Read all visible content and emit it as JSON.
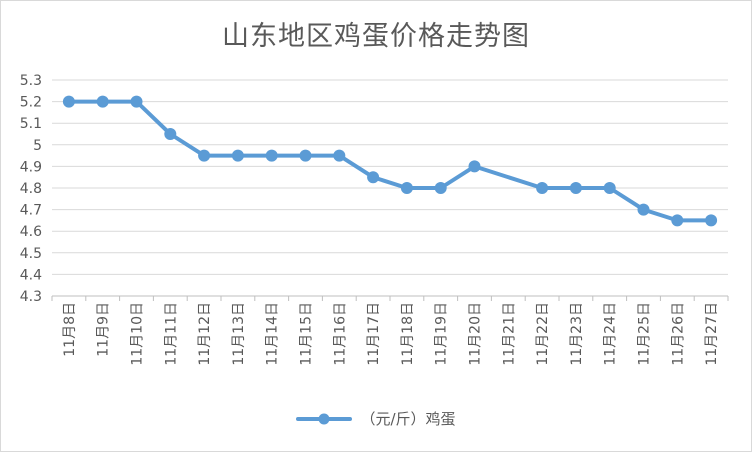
{
  "chart_data": {
    "type": "line",
    "title": "山东地区鸡蛋价格走势图",
    "categories": [
      "11月8日",
      "11月9日",
      "11月10日",
      "11月11日",
      "11月12日",
      "11月13日",
      "11月14日",
      "11月15日",
      "11月16日",
      "11月17日",
      "11月18日",
      "11月19日",
      "11月20日",
      "11月21日",
      "11月22日",
      "11月23日",
      "11月24日",
      "11月25日",
      "11月26日",
      "11月27日"
    ],
    "series": [
      {
        "name": "（元/斤）鸡蛋",
        "values": [
          5.2,
          5.2,
          5.2,
          5.05,
          4.95,
          4.95,
          4.95,
          4.95,
          4.95,
          4.85,
          4.8,
          4.8,
          4.9,
          null,
          4.8,
          4.8,
          4.8,
          4.7,
          4.65,
          4.65
        ],
        "color": "#5b9bd5"
      }
    ],
    "ylim": [
      4.3,
      5.3
    ],
    "yticks": [
      "4.3",
      "4.4",
      "4.5",
      "4.6",
      "4.7",
      "4.8",
      "4.9",
      "5",
      "5.1",
      "5.2",
      "5.3"
    ],
    "grid": true,
    "legend": "bottom"
  }
}
